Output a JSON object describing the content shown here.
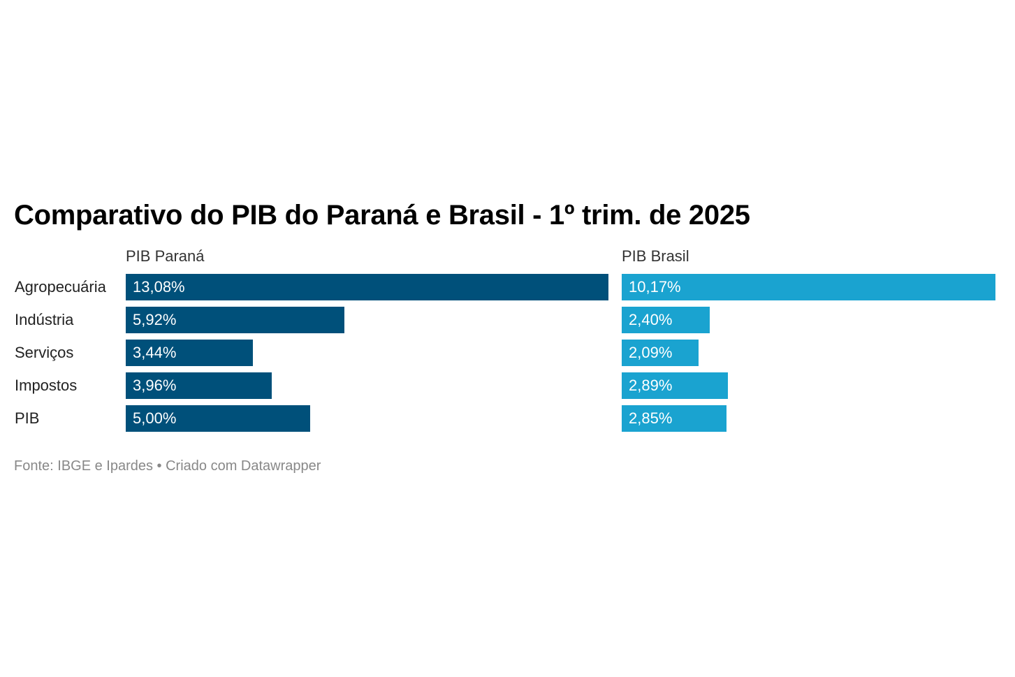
{
  "chart_data": {
    "type": "bar",
    "title": "Comparativo do PIB do Paraná e Brasil - 1º trim. de 2025",
    "categories": [
      "Agropecuária",
      "Indústria",
      "Serviços",
      "Impostos",
      "PIB"
    ],
    "series": [
      {
        "name": "PIB Paraná",
        "values": [
          13.08,
          5.92,
          3.44,
          3.96,
          5.0
        ],
        "labels": [
          "13,08%",
          "5,92%",
          "3,44%",
          "3,96%",
          "5,00%"
        ],
        "color": "#00507a"
      },
      {
        "name": "PIB Brasil",
        "values": [
          10.17,
          2.4,
          2.09,
          2.89,
          2.85
        ],
        "labels": [
          "10,17%",
          "2,40%",
          "2,09%",
          "2,89%",
          "2,85%"
        ],
        "color": "#1aa3d0"
      }
    ],
    "legend": "column headers above bars",
    "grid": false
  },
  "source": "Fonte: IBGE e Ipardes • Criado com Datawrapper"
}
